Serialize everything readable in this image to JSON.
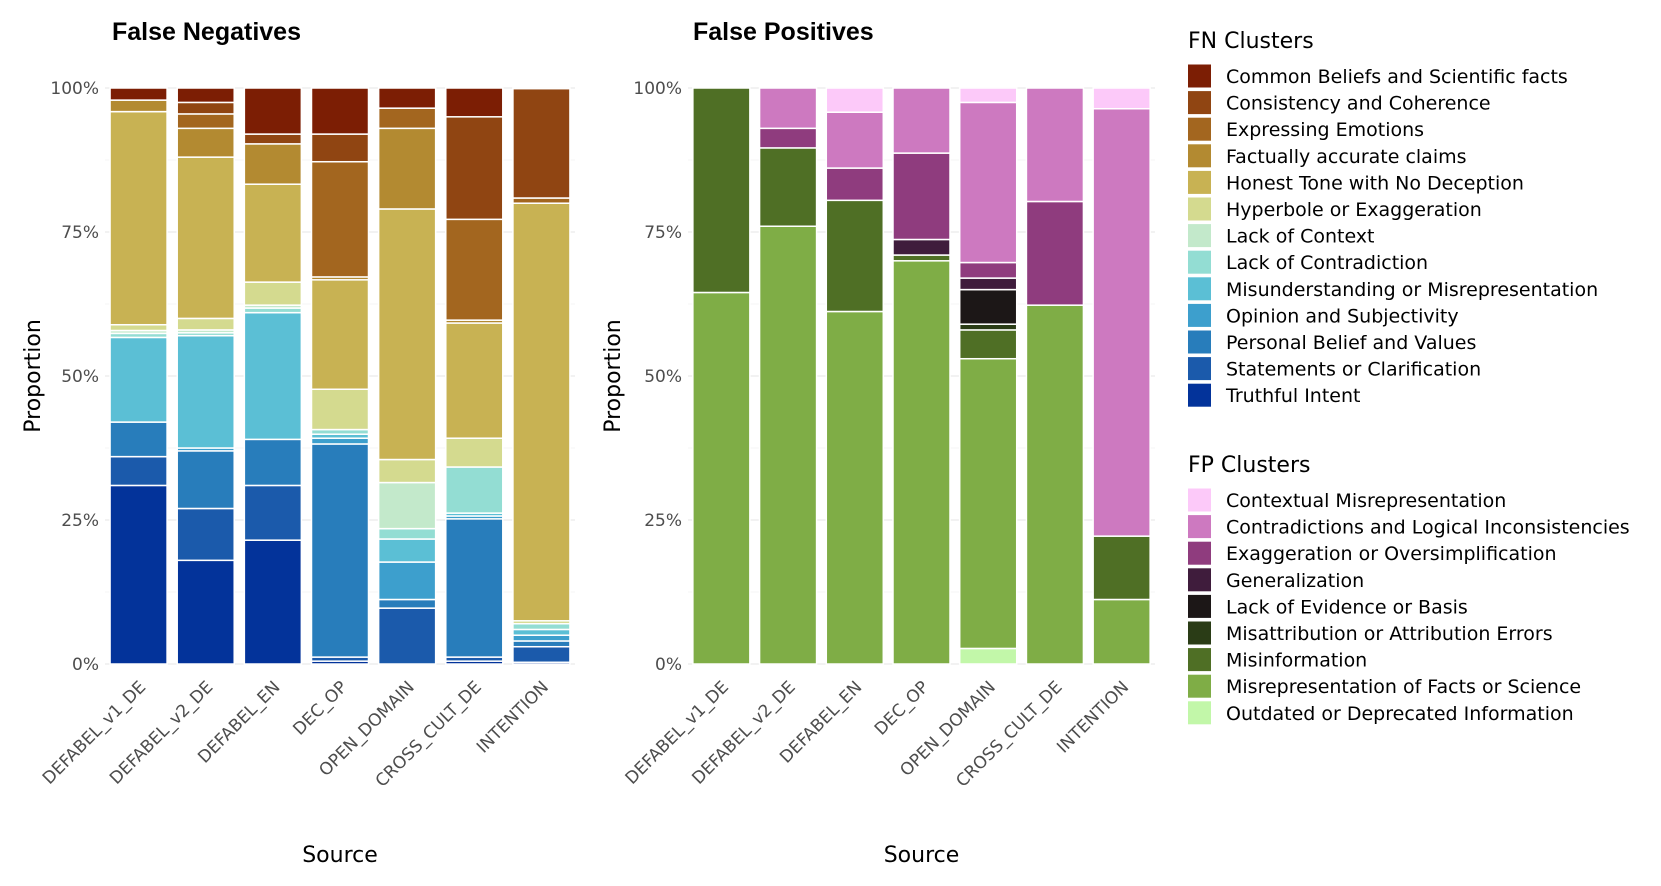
{
  "chart_data": [
    {
      "type": "bar",
      "stacked": true,
      "title": "False Negatives",
      "xlabel": "Source",
      "ylabel": "Proportion",
      "ylim": [
        0,
        1
      ],
      "ytick_labels": [
        "0%",
        "25%",
        "50%",
        "75%",
        "100%"
      ],
      "categories": [
        "DEFABEL_v1_DE",
        "DEFABEL_v2_DE",
        "DEFABEL_EN",
        "DEC_OP",
        "OPEN_DOMAIN",
        "CROSS_CULT_DE",
        "INTENTION"
      ],
      "series": [
        {
          "name": "Truthful Intent",
          "color": "#03339a",
          "values": [
            0.31,
            0.18,
            0.215,
            0.005,
            0.0,
            0.005,
            0.003
          ]
        },
        {
          "name": "Statements or Clarification",
          "color": "#1b5aab",
          "values": [
            0.05,
            0.09,
            0.095,
            0.007,
            0.097,
            0.007,
            0.027
          ]
        },
        {
          "name": "Personal Belief and Values",
          "color": "#287dbb",
          "values": [
            0.06,
            0.1,
            0.08,
            0.37,
            0.015,
            0.24,
            0.01
          ]
        },
        {
          "name": "Opinion and Subjectivity",
          "color": "#3d9fcd",
          "values": [
            0.0,
            0.005,
            0.0,
            0.01,
            0.065,
            0.005,
            0.01
          ]
        },
        {
          "name": "Misunderstanding or Misrepresentation",
          "color": "#5bbfd5",
          "values": [
            0.147,
            0.195,
            0.22,
            0.007,
            0.04,
            0.005,
            0.01
          ]
        },
        {
          "name": "Lack of Contradiction",
          "color": "#93ddd3",
          "values": [
            0.007,
            0.005,
            0.008,
            0.008,
            0.018,
            0.08,
            0.01
          ]
        },
        {
          "name": "Lack of Context",
          "color": "#c3e9cb",
          "values": [
            0.005,
            0.005,
            0.005,
            0.0,
            0.08,
            0.0,
            0.0
          ]
        },
        {
          "name": "Hyperbole or Exaggeration",
          "color": "#d4da8f",
          "values": [
            0.01,
            0.02,
            0.04,
            0.07,
            0.04,
            0.05,
            0.005
          ]
        },
        {
          "name": "Honest Tone with No Deception",
          "color": "#c8b253",
          "values": [
            0.37,
            0.28,
            0.17,
            0.19,
            0.435,
            0.2,
            0.725
          ]
        },
        {
          "name": "Factually accurate claims",
          "color": "#b38a31",
          "values": [
            0.02,
            0.05,
            0.07,
            0.005,
            0.14,
            0.005,
            0.0
          ]
        },
        {
          "name": "Expressing Emotions",
          "color": "#a3661f",
          "values": [
            0.0,
            0.025,
            0.0,
            0.2,
            0.035,
            0.175,
            0.009
          ]
        },
        {
          "name": "Consistency and Coherence",
          "color": "#904512",
          "values": [
            0.0,
            0.02,
            0.017,
            0.048,
            0.0,
            0.178,
            0.19
          ]
        },
        {
          "name": "Common Beliefs and Scientific facts",
          "color": "#7c1e04",
          "values": [
            0.021,
            0.025,
            0.08,
            0.08,
            0.035,
            0.05,
            0.001
          ]
        }
      ]
    },
    {
      "type": "bar",
      "stacked": true,
      "title": "False Positives",
      "xlabel": "Source",
      "ylabel": "Proportion",
      "ylim": [
        0,
        1
      ],
      "ytick_labels": [
        "0%",
        "25%",
        "50%",
        "75%",
        "100%"
      ],
      "categories": [
        "DEFABEL_v1_DE",
        "DEFABEL_v2_DE",
        "DEFABEL_EN",
        "DEC_OP",
        "OPEN_DOMAIN",
        "CROSS_CULT_DE",
        "INTENTION"
      ],
      "series": [
        {
          "name": "Outdated or Deprecated Information",
          "color": "#c2f7a9",
          "values": [
            0.0,
            0.0,
            0.0,
            0.0,
            0.027,
            0.0,
            0.0
          ]
        },
        {
          "name": "Misrepresentation of Facts or Science",
          "color": "#7fad46",
          "values": [
            0.645,
            0.76,
            0.612,
            0.7,
            0.503,
            0.623,
            0.112
          ]
        },
        {
          "name": "Misinformation",
          "color": "#4f6f25",
          "values": [
            0.355,
            0.136,
            0.193,
            0.01,
            0.05,
            0.0,
            0.11
          ]
        },
        {
          "name": "Misattribution or Attribution Errors",
          "color": "#2a3c16",
          "values": [
            0.0,
            0.0,
            0.0,
            0.0,
            0.01,
            0.0,
            0.0
          ]
        },
        {
          "name": "Lack of Evidence or Basis",
          "color": "#1c1717",
          "values": [
            0.0,
            0.0,
            0.0,
            0.0,
            0.06,
            0.0,
            0.0
          ]
        },
        {
          "name": "Generalization",
          "color": "#3f1c3c",
          "values": [
            0.0,
            0.0,
            0.0,
            0.027,
            0.02,
            0.0,
            0.0
          ]
        },
        {
          "name": "Exaggeration or Oversimplification",
          "color": "#8f3c7e",
          "values": [
            0.0,
            0.034,
            0.056,
            0.15,
            0.027,
            0.18,
            0.0
          ]
        },
        {
          "name": "Contradictions and Logical Inconsistencies",
          "color": "#cd79c0",
          "values": [
            0.0,
            0.07,
            0.097,
            0.113,
            0.278,
            0.197,
            0.742
          ]
        },
        {
          "name": "Contextual Misrepresentation",
          "color": "#fcc9f9",
          "values": [
            0.0,
            0.0,
            0.042,
            0.0,
            0.025,
            0.0,
            0.036
          ]
        }
      ]
    }
  ],
  "legends": [
    {
      "title": "FN Clusters",
      "items": [
        {
          "label": "Common Beliefs and Scientific facts",
          "color": "#7c1e04"
        },
        {
          "label": "Consistency and Coherence",
          "color": "#904512"
        },
        {
          "label": "Expressing Emotions",
          "color": "#a3661f"
        },
        {
          "label": "Factually accurate claims",
          "color": "#b38a31"
        },
        {
          "label": "Honest Tone with No Deception",
          "color": "#c8b253"
        },
        {
          "label": "Hyperbole or Exaggeration",
          "color": "#d4da8f"
        },
        {
          "label": "Lack of Context",
          "color": "#c3e9cb"
        },
        {
          "label": "Lack of Contradiction",
          "color": "#93ddd3"
        },
        {
          "label": "Misunderstanding or Misrepresentation",
          "color": "#5bbfd5"
        },
        {
          "label": "Opinion and Subjectivity",
          "color": "#3d9fcd"
        },
        {
          "label": "Personal Belief and Values",
          "color": "#287dbb"
        },
        {
          "label": "Statements or Clarification",
          "color": "#1b5aab"
        },
        {
          "label": "Truthful Intent",
          "color": "#03339a"
        }
      ]
    },
    {
      "title": "FP Clusters",
      "items": [
        {
          "label": "Contextual Misrepresentation",
          "color": "#fcc9f9"
        },
        {
          "label": "Contradictions and Logical Inconsistencies",
          "color": "#cd79c0"
        },
        {
          "label": "Exaggeration or Oversimplification",
          "color": "#8f3c7e"
        },
        {
          "label": "Generalization",
          "color": "#3f1c3c"
        },
        {
          "label": "Lack of Evidence or Basis",
          "color": "#1c1717"
        },
        {
          "label": "Misattribution or Attribution Errors",
          "color": "#2a3c16"
        },
        {
          "label": "Misinformation",
          "color": "#4f6f25"
        },
        {
          "label": "Misrepresentation of Facts or Science",
          "color": "#7fad46"
        },
        {
          "label": "Outdated or Deprecated Information",
          "color": "#c2f7a9"
        }
      ]
    }
  ]
}
